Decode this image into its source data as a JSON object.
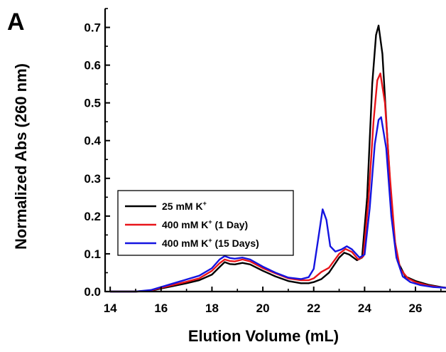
{
  "panel_label": "A",
  "chart_data": {
    "type": "line",
    "title": "",
    "xlabel": "Elution Volume (mL)",
    "ylabel": "Normalized Abs (260 nm)",
    "xlim": [
      13.8,
      27.2
    ],
    "ylim": [
      0,
      0.75
    ],
    "xticks": [
      14,
      16,
      18,
      20,
      22,
      24,
      26
    ],
    "yticks": [
      0.0,
      0.1,
      0.2,
      0.3,
      0.4,
      0.5,
      0.6,
      0.7
    ],
    "ytick_labels": [
      "0.0",
      "0.1",
      "0.2",
      "0.3",
      "0.4",
      "0.5",
      "0.6",
      "0.7"
    ],
    "grid": false,
    "legend": {
      "placement": "middle-left"
    },
    "series": [
      {
        "name": "25 mM K",
        "name_sup": "+",
        "name_suffix": "",
        "color": "#000000",
        "points": [
          [
            14.0,
            0.0
          ],
          [
            15.0,
            0.0
          ],
          [
            15.6,
            0.002
          ],
          [
            16.0,
            0.008
          ],
          [
            16.5,
            0.015
          ],
          [
            17.0,
            0.022
          ],
          [
            17.5,
            0.03
          ],
          [
            18.0,
            0.045
          ],
          [
            18.3,
            0.065
          ],
          [
            18.5,
            0.078
          ],
          [
            18.7,
            0.073
          ],
          [
            18.9,
            0.072
          ],
          [
            19.2,
            0.076
          ],
          [
            19.5,
            0.072
          ],
          [
            20.0,
            0.055
          ],
          [
            20.5,
            0.04
          ],
          [
            21.0,
            0.028
          ],
          [
            21.5,
            0.022
          ],
          [
            21.8,
            0.022
          ],
          [
            22.0,
            0.025
          ],
          [
            22.3,
            0.033
          ],
          [
            22.6,
            0.05
          ],
          [
            23.0,
            0.09
          ],
          [
            23.2,
            0.103
          ],
          [
            23.4,
            0.098
          ],
          [
            23.7,
            0.083
          ],
          [
            23.9,
            0.09
          ],
          [
            24.1,
            0.25
          ],
          [
            24.3,
            0.55
          ],
          [
            24.45,
            0.68
          ],
          [
            24.55,
            0.705
          ],
          [
            24.7,
            0.63
          ],
          [
            24.9,
            0.4
          ],
          [
            25.1,
            0.18
          ],
          [
            25.3,
            0.08
          ],
          [
            25.6,
            0.04
          ],
          [
            26.0,
            0.028
          ],
          [
            26.5,
            0.018
          ],
          [
            27.0,
            0.012
          ],
          [
            27.2,
            0.01
          ]
        ]
      },
      {
        "name": "400 mM K",
        "name_sup": "+",
        "name_suffix": " (1 Day)",
        "color": "#e8141a",
        "points": [
          [
            14.0,
            0.0
          ],
          [
            15.0,
            0.0
          ],
          [
            15.6,
            0.003
          ],
          [
            16.0,
            0.01
          ],
          [
            16.5,
            0.018
          ],
          [
            17.0,
            0.026
          ],
          [
            17.5,
            0.035
          ],
          [
            18.0,
            0.055
          ],
          [
            18.3,
            0.075
          ],
          [
            18.5,
            0.085
          ],
          [
            18.7,
            0.081
          ],
          [
            18.9,
            0.08
          ],
          [
            19.2,
            0.085
          ],
          [
            19.5,
            0.08
          ],
          [
            20.0,
            0.062
          ],
          [
            20.5,
            0.048
          ],
          [
            21.0,
            0.035
          ],
          [
            21.5,
            0.03
          ],
          [
            21.8,
            0.03
          ],
          [
            22.0,
            0.035
          ],
          [
            22.3,
            0.052
          ],
          [
            22.6,
            0.063
          ],
          [
            23.0,
            0.1
          ],
          [
            23.25,
            0.113
          ],
          [
            23.5,
            0.105
          ],
          [
            23.75,
            0.085
          ],
          [
            23.95,
            0.093
          ],
          [
            24.15,
            0.24
          ],
          [
            24.35,
            0.45
          ],
          [
            24.5,
            0.56
          ],
          [
            24.62,
            0.578
          ],
          [
            24.8,
            0.5
          ],
          [
            25.0,
            0.3
          ],
          [
            25.2,
            0.13
          ],
          [
            25.4,
            0.06
          ],
          [
            25.7,
            0.035
          ],
          [
            26.0,
            0.025
          ],
          [
            26.5,
            0.016
          ],
          [
            27.0,
            0.011
          ],
          [
            27.2,
            0.01
          ]
        ]
      },
      {
        "name": "400 mM K",
        "name_sup": "+",
        "name_suffix": " (15 Days)",
        "color": "#1414e0",
        "points": [
          [
            14.0,
            0.0
          ],
          [
            15.0,
            0.0
          ],
          [
            15.6,
            0.004
          ],
          [
            16.0,
            0.012
          ],
          [
            16.5,
            0.022
          ],
          [
            17.0,
            0.032
          ],
          [
            17.5,
            0.042
          ],
          [
            18.0,
            0.062
          ],
          [
            18.3,
            0.085
          ],
          [
            18.5,
            0.094
          ],
          [
            18.7,
            0.089
          ],
          [
            18.9,
            0.087
          ],
          [
            19.2,
            0.09
          ],
          [
            19.5,
            0.085
          ],
          [
            20.0,
            0.066
          ],
          [
            20.5,
            0.05
          ],
          [
            21.0,
            0.037
          ],
          [
            21.5,
            0.033
          ],
          [
            21.8,
            0.038
          ],
          [
            22.0,
            0.06
          ],
          [
            22.2,
            0.15
          ],
          [
            22.35,
            0.218
          ],
          [
            22.5,
            0.19
          ],
          [
            22.65,
            0.12
          ],
          [
            22.85,
            0.106
          ],
          [
            23.1,
            0.112
          ],
          [
            23.3,
            0.12
          ],
          [
            23.5,
            0.112
          ],
          [
            23.8,
            0.09
          ],
          [
            24.0,
            0.098
          ],
          [
            24.2,
            0.22
          ],
          [
            24.4,
            0.39
          ],
          [
            24.55,
            0.455
          ],
          [
            24.65,
            0.462
          ],
          [
            24.85,
            0.38
          ],
          [
            25.05,
            0.2
          ],
          [
            25.25,
            0.09
          ],
          [
            25.5,
            0.04
          ],
          [
            25.8,
            0.025
          ],
          [
            26.2,
            0.017
          ],
          [
            26.7,
            0.012
          ],
          [
            27.2,
            0.01
          ]
        ]
      }
    ]
  }
}
